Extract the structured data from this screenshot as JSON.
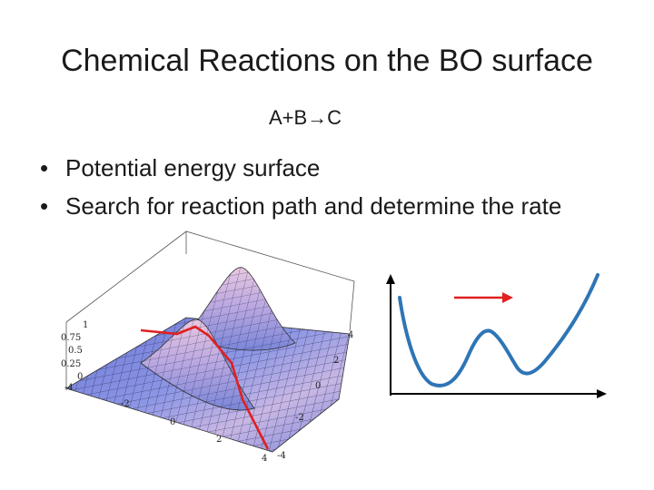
{
  "slide": {
    "title": "Chemical Reactions on the BO surface",
    "reaction": "A+B→C",
    "bullets": [
      "Potential energy surface",
      "Search for reaction path and determine the rate"
    ]
  },
  "surface_plot": {
    "z_ticks": [
      "1",
      "0.75",
      "0.5",
      "0.25",
      "0"
    ],
    "x_ticks": [
      "-4",
      "-2",
      "0",
      "2",
      "4"
    ],
    "y_ticks": [
      "4",
      "2",
      "0",
      "-2",
      "-4"
    ],
    "colors": {
      "surface": "#7b86d8",
      "path": "#e02020"
    }
  },
  "energy_profile": {
    "colors": {
      "curve": "#2e75b6",
      "arrow": "#e02020",
      "axes": "#000000"
    }
  }
}
